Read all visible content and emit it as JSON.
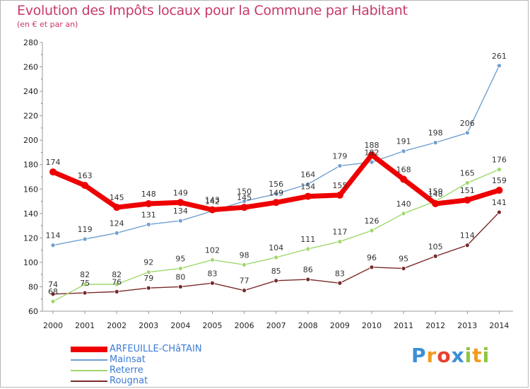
{
  "title": "Evolution des Impôts locaux pour la Commune par Habitant",
  "subtitle": "(en € et par an)",
  "logo": {
    "text": "Proxiti",
    "letters": [
      {
        "ch": "P",
        "color": "#3c8fd8"
      },
      {
        "ch": "r",
        "color": "#f29b1d"
      },
      {
        "ch": "o",
        "color": "#e8402e"
      },
      {
        "ch": "x",
        "color": "#3c8fd8"
      },
      {
        "ch": "i",
        "color": "#8cc63f"
      },
      {
        "ch": "t",
        "color": "#f29b1d"
      },
      {
        "ch": "i",
        "color": "#8cc63f"
      }
    ]
  },
  "chart_data": {
    "type": "line",
    "x": [
      2000,
      2001,
      2002,
      2003,
      2004,
      2005,
      2006,
      2007,
      2008,
      2009,
      2010,
      2011,
      2012,
      2013,
      2014
    ],
    "ylim": [
      60,
      280
    ],
    "yticks": [
      60,
      80,
      100,
      120,
      140,
      160,
      180,
      200,
      220,
      240,
      260,
      280
    ],
    "grid": false,
    "legend": "bottom-left",
    "series": [
      {
        "name": "ARFEUILLE-CHâTAIN",
        "color": "#ee0000",
        "width": "thick",
        "values": [
          174,
          163,
          145,
          148,
          149,
          143,
          145,
          149,
          154,
          155,
          188,
          168,
          148,
          151,
          159
        ]
      },
      {
        "name": "Mainsat",
        "color": "#6f9fd0",
        "width": "thin",
        "values": [
          114,
          119,
          124,
          131,
          134,
          142,
          150,
          156,
          164,
          179,
          182,
          191,
          198,
          206,
          261
        ]
      },
      {
        "name": "Reterre",
        "color": "#9ed86c",
        "width": "thin",
        "values": [
          68,
          82,
          82,
          92,
          95,
          102,
          98,
          104,
          111,
          117,
          126,
          140,
          150,
          165,
          176
        ]
      },
      {
        "name": "Rougnat",
        "color": "#7a2a2a",
        "width": "thin",
        "values": [
          74,
          75,
          76,
          79,
          80,
          83,
          77,
          85,
          86,
          83,
          96,
          95,
          105,
          114,
          141
        ]
      }
    ]
  }
}
